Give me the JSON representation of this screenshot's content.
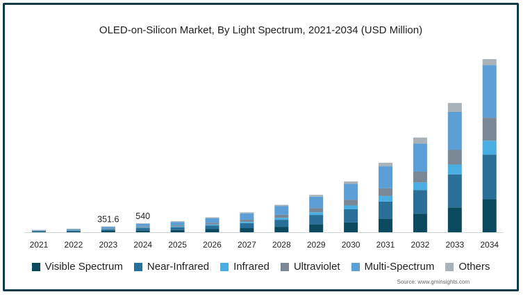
{
  "title": "OLED-on-Silicon Market, By Light Spectrum, 2021-2034 (USD Million)",
  "source": "Source: www.gminsights.com",
  "chart_data": {
    "type": "bar",
    "stacked": true,
    "title": "OLED-on-Silicon Market, By Light Spectrum, 2021-2034 (USD Million)",
    "xlabel": "",
    "ylabel": "",
    "grid": false,
    "legend_position": "bottom",
    "categories": [
      "2021",
      "2022",
      "2023",
      "2024",
      "2025",
      "2026",
      "2027",
      "2028",
      "2029",
      "2030",
      "2031",
      "2032",
      "2033",
      "2034"
    ],
    "totals": [
      140,
      210,
      351.6,
      540,
      660,
      900,
      1200,
      1650,
      2250,
      3060,
      4180,
      5700,
      7780,
      10420
    ],
    "annotations": [
      {
        "category": "2023",
        "text": "351.6"
      },
      {
        "category": "2024",
        "text": "540"
      }
    ],
    "series": [
      {
        "name": "Visible Spectrum",
        "color": "#0b4a5e",
        "values": [
          36,
          54,
          84,
          110,
          140,
          190,
          250,
          330,
          460,
          590,
          810,
          1120,
          1500,
          1990
        ]
      },
      {
        "name": "Near-Infrared",
        "color": "#2a6f97",
        "values": [
          35,
          52,
          88,
          140,
          160,
          220,
          300,
          420,
          580,
          790,
          1040,
          1420,
          1980,
          2680
        ]
      },
      {
        "name": "Infrared",
        "color": "#4aaee3",
        "values": [
          8,
          12,
          20,
          35,
          40,
          60,
          80,
          120,
          160,
          230,
          330,
          460,
          600,
          840
        ]
      },
      {
        "name": "Ultraviolet",
        "color": "#7a8896",
        "values": [
          15,
          22,
          38,
          60,
          72,
          100,
          130,
          180,
          260,
          340,
          460,
          640,
          880,
          1390
        ]
      },
      {
        "name": "Multi-Spectrum",
        "color": "#5b9fd6",
        "values": [
          38,
          56,
          98,
          160,
          208,
          280,
          380,
          520,
          680,
          960,
          1330,
          1700,
          2280,
          3160
        ]
      },
      {
        "name": "Others",
        "color": "#a9b2b8",
        "values": [
          8,
          14,
          23.6,
          35,
          40,
          50,
          60,
          80,
          110,
          150,
          210,
          360,
          540,
          360
        ]
      }
    ]
  }
}
